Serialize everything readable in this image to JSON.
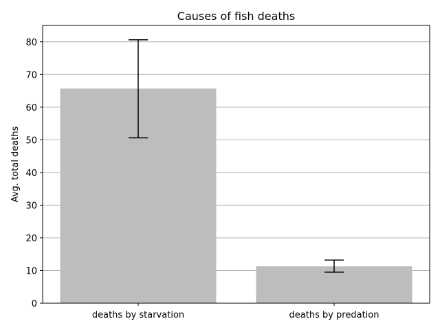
{
  "chart_data": {
    "type": "bar",
    "title": "Causes of fish deaths",
    "xlabel": "",
    "ylabel": "Avg. total deaths",
    "categories": [
      "deaths by starvation",
      "deaths by predation"
    ],
    "values": [
      65.7,
      11.3
    ],
    "error": [
      {
        "low": 50.6,
        "high": 80.6
      },
      {
        "low": 9.5,
        "high": 13.2
      }
    ],
    "ylim": [
      0,
      85
    ],
    "yticks": [
      0,
      10,
      20,
      30,
      40,
      50,
      60,
      70,
      80
    ],
    "grid": "y",
    "legend": "none",
    "bar_color": "#bdbdbd",
    "grid_color": "#b0b0b0",
    "error_color": "#000000"
  }
}
